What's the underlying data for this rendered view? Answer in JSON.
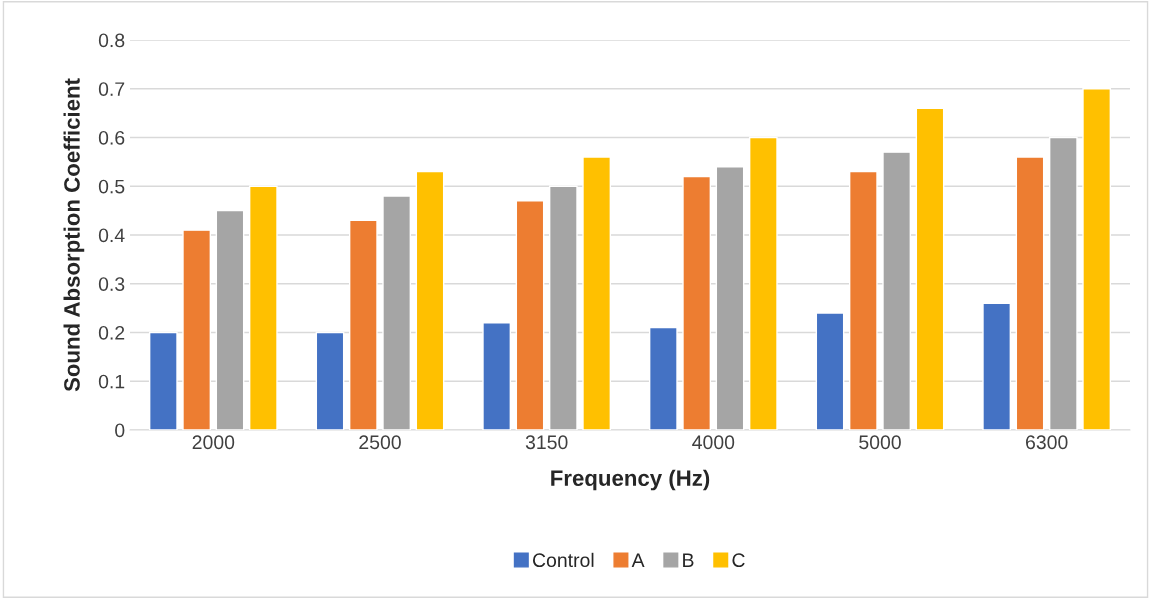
{
  "chart_data": {
    "type": "bar",
    "xlabel": "Frequency (Hz)",
    "ylabel": "Sound Absorption Coefficient",
    "categories": [
      "2000",
      "2500",
      "3150",
      "4000",
      "5000",
      "6300"
    ],
    "series": [
      {
        "name": "Control",
        "color": "#4472c4",
        "values": [
          0.2,
          0.2,
          0.22,
          0.21,
          0.24,
          0.26
        ]
      },
      {
        "name": "A",
        "color": "#ed7d31",
        "values": [
          0.41,
          0.43,
          0.47,
          0.52,
          0.53,
          0.56
        ]
      },
      {
        "name": "B",
        "color": "#a5a5a5",
        "values": [
          0.45,
          0.48,
          0.5,
          0.54,
          0.57,
          0.6
        ]
      },
      {
        "name": "C",
        "color": "#ffc000",
        "values": [
          0.5,
          0.53,
          0.56,
          0.6,
          0.66,
          0.7
        ]
      }
    ],
    "ylim": [
      0,
      0.8
    ],
    "yticks": [
      0,
      0.1,
      0.2,
      0.3,
      0.4,
      0.5,
      0.6,
      0.7,
      0.8
    ],
    "grid": "y",
    "legend": "bottom"
  }
}
